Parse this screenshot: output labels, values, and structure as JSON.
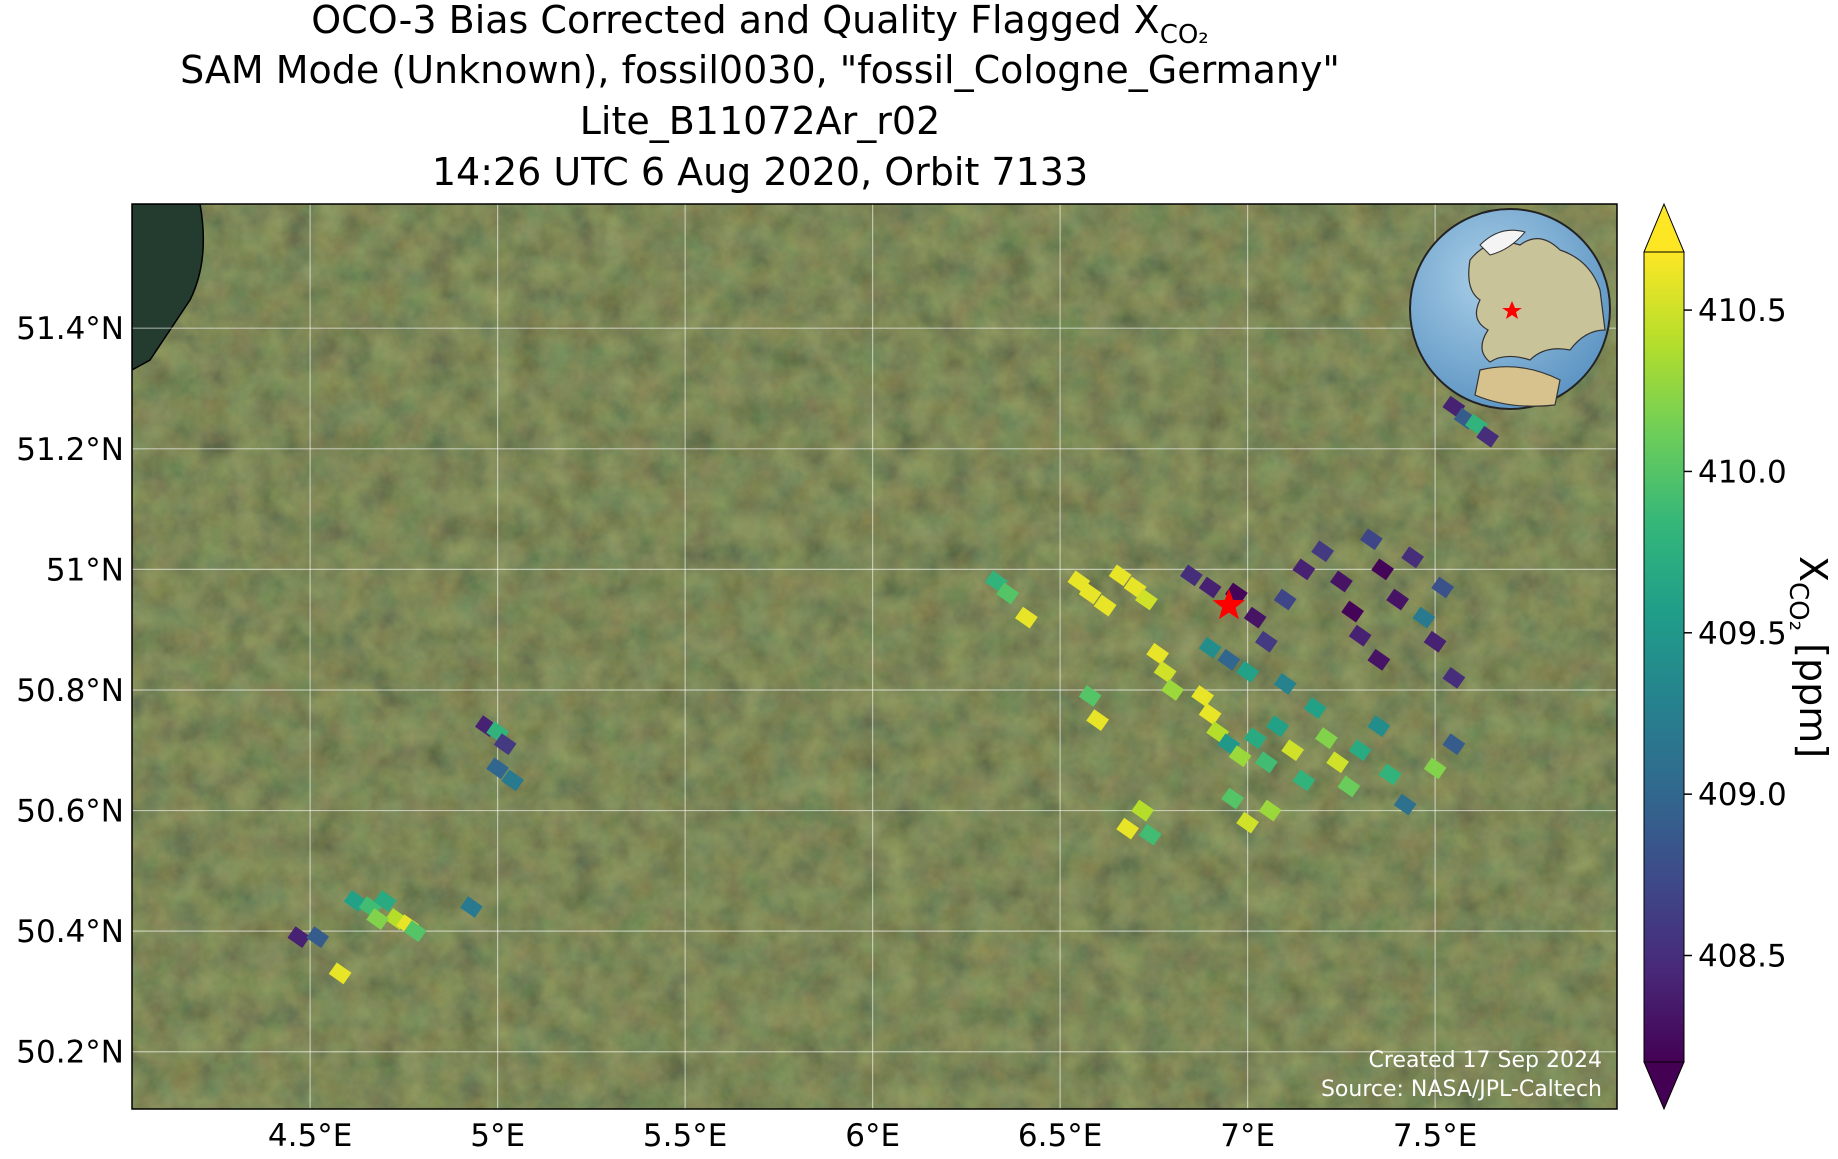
{
  "chart_data": {
    "type": "map",
    "title_lines": [
      "SAM Mode (Unknown), fossil0030, \"fossil_Cologne_Germany\"",
      "Lite_B11072Ar_r02",
      "14:26 UTC 6 Aug 2020, Orbit 7133"
    ],
    "title_main": "OCO-3 Bias Corrected and Quality Flagged X",
    "title_sub": "CO₂",
    "colorbar_label": {
      "main": "X",
      "sub": "CO₂",
      "unit": " [ppm]"
    },
    "credit": [
      "Created 17 Sep 2024",
      "Source: NASA/JPL-Caltech"
    ],
    "xlim": [
      4.025,
      7.985
    ],
    "ylim": [
      50.105,
      51.606
    ],
    "xticks": [
      {
        "value": 4.5,
        "label": "4.5°E"
      },
      {
        "value": 5,
        "label": "5°E"
      },
      {
        "value": 5.5,
        "label": "5.5°E"
      },
      {
        "value": 6,
        "label": "6°E"
      },
      {
        "value": 6.5,
        "label": "6.5°E"
      },
      {
        "value": 7,
        "label": "7°E"
      },
      {
        "value": 7.5,
        "label": "7.5°E"
      }
    ],
    "yticks": [
      {
        "value": 50.2,
        "label": "50.2°N"
      },
      {
        "value": 50.4,
        "label": "50.4°N"
      },
      {
        "value": 50.6,
        "label": "50.6°N"
      },
      {
        "value": 50.8,
        "label": "50.8°N"
      },
      {
        "value": 51,
        "label": "51°N"
      },
      {
        "value": 51.2,
        "label": "51.2°N"
      },
      {
        "value": 51.4,
        "label": "51.4°N"
      }
    ],
    "clim": [
      408.17,
      410.68
    ],
    "cticks": [
      408.5,
      {
        "value": 409,
        "label": "409.0"
      },
      409.5,
      {
        "value": 410,
        "label": "410.0"
      },
      410.5
    ],
    "colormap": [
      "#440154",
      "#482878",
      "#3e4989",
      "#31688e",
      "#26828e",
      "#1f9e89",
      "#35b779",
      "#6ece58",
      "#b5de2b",
      "#fde725"
    ],
    "grid": true,
    "site": {
      "lon": 6.95,
      "lat": 50.94,
      "color": "#ff0000"
    },
    "soundings": {
      "lon": [
        4.62,
        4.66,
        4.7,
        4.73,
        4.76,
        4.78,
        4.68,
        4.47,
        4.52,
        4.58,
        4.93,
        4.97,
        5.0,
        5.02,
        5.0,
        5.04,
        6.55,
        6.58,
        6.62,
        6.66,
        6.7,
        6.73,
        6.76,
        6.78,
        6.8,
        6.33,
        6.36,
        6.41,
        6.58,
        6.6,
        6.88,
        6.9,
        6.92,
        6.95,
        6.98,
        7.02,
        7.05,
        7.08,
        7.12,
        7.15,
        7.18,
        7.21,
        7.24,
        7.27,
        7.3,
        7.35,
        7.38,
        7.42,
        7.5,
        7.55,
        6.96,
        7.0,
        7.06,
        6.72,
        6.68,
        6.74,
        6.85,
        6.9,
        6.97,
        7.02,
        7.05,
        7.1,
        7.15,
        7.2,
        7.25,
        7.28,
        7.3,
        7.33,
        7.36,
        7.4,
        7.44,
        7.47,
        7.5,
        7.52,
        7.35,
        7.55,
        6.9,
        6.95,
        7.0,
        7.1,
        7.55,
        7.58,
        7.61,
        7.64
      ],
      "lat": [
        50.45,
        50.44,
        50.45,
        50.42,
        50.41,
        50.4,
        50.42,
        50.39,
        50.39,
        50.33,
        50.44,
        50.74,
        50.73,
        50.71,
        50.67,
        50.65,
        50.98,
        50.96,
        50.94,
        50.99,
        50.97,
        50.95,
        50.86,
        50.83,
        50.8,
        50.98,
        50.96,
        50.92,
        50.79,
        50.75,
        50.79,
        50.76,
        50.73,
        50.71,
        50.69,
        50.72,
        50.68,
        50.74,
        50.7,
        50.65,
        50.77,
        50.72,
        50.68,
        50.64,
        50.7,
        50.74,
        50.66,
        50.61,
        50.67,
        50.71,
        50.62,
        50.58,
        50.6,
        50.6,
        50.57,
        50.56,
        50.99,
        50.97,
        50.96,
        50.92,
        50.88,
        50.95,
        51.0,
        51.03,
        50.98,
        50.93,
        50.89,
        51.05,
        51.0,
        50.95,
        51.02,
        50.92,
        50.88,
        50.97,
        50.85,
        50.82,
        50.87,
        50.85,
        50.83,
        50.81,
        51.27,
        51.25,
        51.24,
        51.22
      ],
      "xco2": [
        409.6,
        409.9,
        409.7,
        410.4,
        410.6,
        410.0,
        410.2,
        408.4,
        408.9,
        410.6,
        409.2,
        408.4,
        409.8,
        408.6,
        409.0,
        409.2,
        410.6,
        410.6,
        410.6,
        410.6,
        410.6,
        410.5,
        410.6,
        410.5,
        410.3,
        409.8,
        410.0,
        410.6,
        410.0,
        410.6,
        410.6,
        410.6,
        410.4,
        409.5,
        410.3,
        409.7,
        409.9,
        409.6,
        410.5,
        409.8,
        409.6,
        410.2,
        410.5,
        410.1,
        409.7,
        409.4,
        409.8,
        409.1,
        410.2,
        408.9,
        410.0,
        410.5,
        410.3,
        410.4,
        410.6,
        409.9,
        408.5,
        408.4,
        408.2,
        408.3,
        408.6,
        408.7,
        408.4,
        408.6,
        408.3,
        408.2,
        408.4,
        408.7,
        408.2,
        408.3,
        408.5,
        409.2,
        408.4,
        408.8,
        408.3,
        408.5,
        409.4,
        409.0,
        409.6,
        409.3,
        408.4,
        408.9,
        409.8,
        408.5
      ]
    }
  }
}
